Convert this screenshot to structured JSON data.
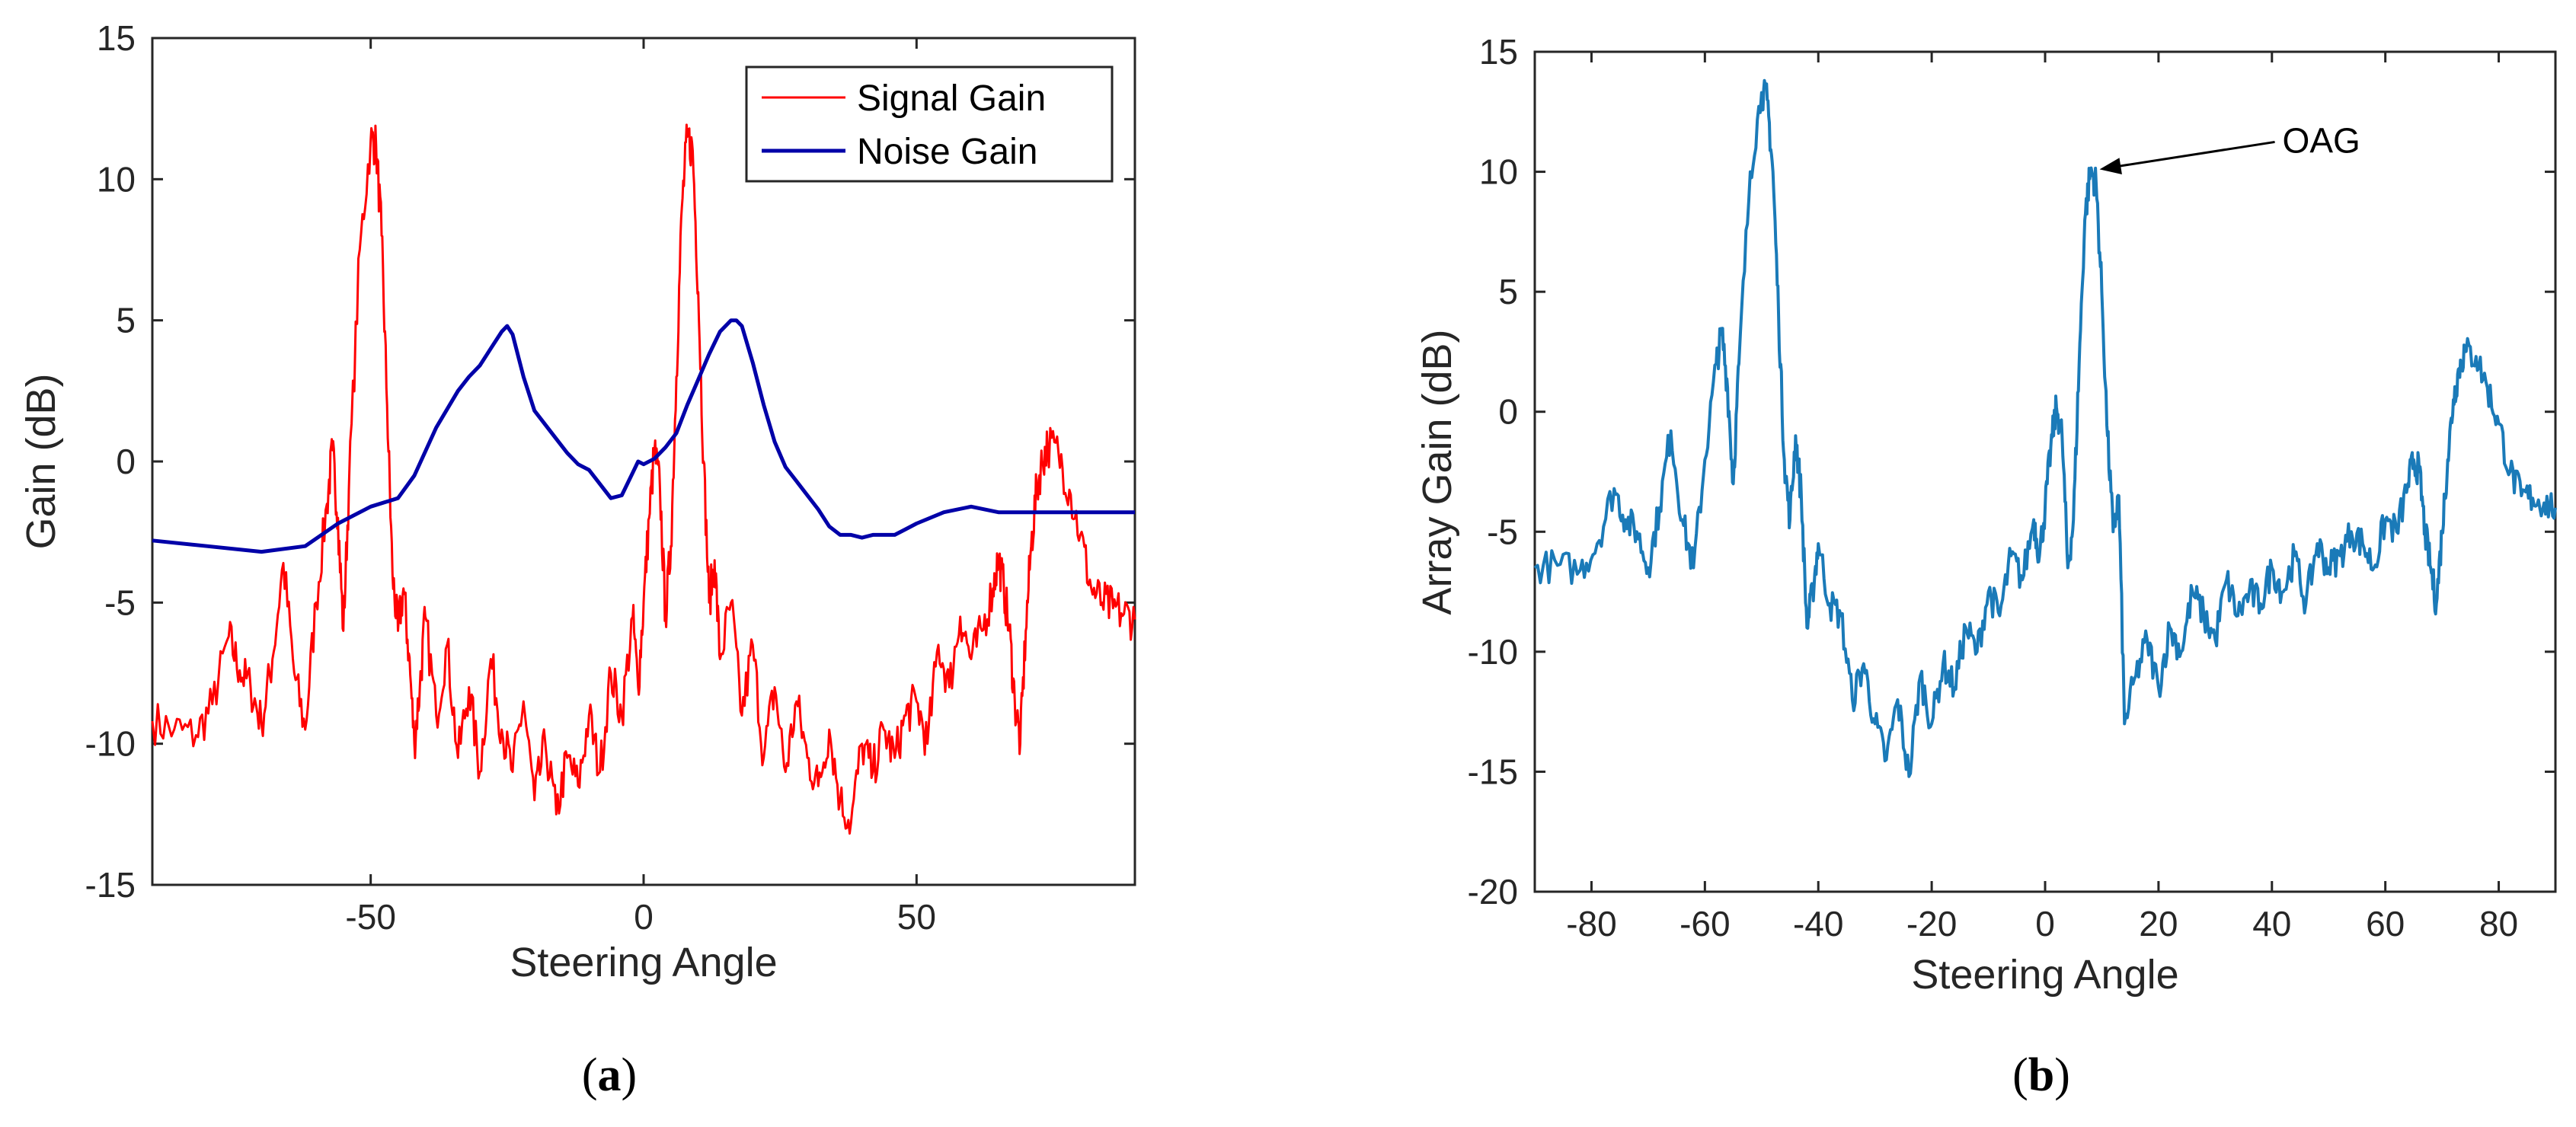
{
  "chart_data": [
    {
      "type": "line",
      "panel_caption": "(a)",
      "caption_letter": "a",
      "title": "",
      "xlabel": "Steering Angle",
      "ylabel": "Gain (dB)",
      "xlim": [
        -90,
        90
      ],
      "ylim": [
        -15,
        15
      ],
      "xticks": [
        -50,
        0,
        50
      ],
      "yticks": [
        -15,
        -10,
        -5,
        0,
        5,
        10,
        15
      ],
      "grid": false,
      "legend_position": "top-right",
      "series": [
        {
          "name": "Signal Gain",
          "color": "#ff0000",
          "x": [
            -90,
            -86,
            -82,
            -79,
            -76,
            -74,
            -72,
            -70,
            -68,
            -66,
            -64,
            -62,
            -60,
            -58,
            -57,
            -56,
            -55,
            -54,
            -52,
            -50,
            -49,
            -48,
            -47,
            -46,
            -45,
            -44,
            -43,
            -42,
            -41,
            -40,
            -38,
            -36,
            -34,
            -32,
            -30,
            -28,
            -26,
            -24,
            -22,
            -20,
            -18,
            -16,
            -14,
            -12,
            -10,
            -8,
            -6,
            -4,
            -2,
            -1,
            0,
            1,
            2,
            3,
            4,
            5,
            6,
            7,
            8,
            9,
            10,
            11,
            12,
            13,
            14,
            16,
            18,
            20,
            22,
            24,
            26,
            28,
            30,
            32,
            34,
            36,
            38,
            40,
            42,
            44,
            46,
            48,
            50,
            52,
            54,
            56,
            58,
            60,
            62,
            64,
            65,
            66,
            67,
            68,
            69,
            70,
            71,
            72,
            73,
            74,
            76,
            78,
            80,
            82,
            84,
            86,
            88,
            90
          ],
          "values": [
            -9.2,
            -9.5,
            -9.7,
            -8.6,
            -6.2,
            -7.4,
            -8.0,
            -9.3,
            -7.0,
            -3.6,
            -7.5,
            -9.5,
            -5.0,
            -1.5,
            0.4,
            -2.0,
            -6.0,
            -1.0,
            7.5,
            11.4,
            11.2,
            8.0,
            2.0,
            -4.0,
            -6.0,
            -4.5,
            -6.8,
            -10.0,
            -8.0,
            -5.5,
            -9.0,
            -6.5,
            -10.5,
            -8.0,
            -11.0,
            -7.0,
            -9.5,
            -11.0,
            -8.5,
            -12.0,
            -10.0,
            -12.5,
            -10.5,
            -11.5,
            -9.0,
            -11.0,
            -7.5,
            -9.0,
            -5.5,
            -8.0,
            -5.0,
            -2.0,
            0.4,
            -1.0,
            -5.5,
            -3.0,
            3.0,
            9.0,
            11.5,
            11.0,
            6.0,
            0.0,
            -5.0,
            -3.5,
            -7.0,
            -5.0,
            -9.0,
            -6.5,
            -10.5,
            -8.0,
            -11.0,
            -8.5,
            -10.5,
            -11.5,
            -9.5,
            -12.0,
            -12.8,
            -10.0,
            -11.0,
            -9.5,
            -10.5,
            -9.0,
            -8.5,
            -10.0,
            -6.5,
            -8.0,
            -5.5,
            -7.0,
            -6.0,
            -4.5,
            -3.4,
            -4.5,
            -6.0,
            -8.5,
            -10.0,
            -6.0,
            -3.0,
            -1.0,
            0.0,
            0.6,
            0.3,
            -1.0,
            -2.6,
            -4.5,
            -5.0,
            -5.2,
            -5.4,
            -5.6
          ]
        },
        {
          "name": "Noise Gain",
          "color": "#0000a8",
          "x": [
            -90,
            -80,
            -70,
            -62,
            -56,
            -50,
            -45,
            -42,
            -38,
            -34,
            -32,
            -30,
            -28,
            -26,
            -25,
            -24,
            -22,
            -20,
            -18,
            -16,
            -14,
            -12,
            -10,
            -8,
            -6,
            -4,
            -2,
            -1,
            0,
            2,
            4,
            6,
            8,
            10,
            12,
            14,
            16,
            17,
            18,
            20,
            22,
            24,
            26,
            28,
            30,
            32,
            34,
            36,
            38,
            40,
            42,
            44,
            46,
            48,
            50,
            55,
            60,
            65,
            70,
            75,
            80,
            85,
            90
          ],
          "values": [
            -2.8,
            -3.0,
            -3.2,
            -3.0,
            -2.2,
            -1.6,
            -1.3,
            -0.5,
            1.2,
            2.5,
            3.0,
            3.4,
            4.0,
            4.6,
            4.8,
            4.5,
            3.0,
            1.8,
            1.3,
            0.8,
            0.3,
            -0.1,
            -0.3,
            -0.8,
            -1.3,
            -1.2,
            -0.4,
            0.0,
            -0.1,
            0.1,
            0.5,
            1.0,
            2.0,
            2.9,
            3.8,
            4.6,
            5.0,
            5.0,
            4.8,
            3.5,
            2.0,
            0.7,
            -0.2,
            -0.7,
            -1.2,
            -1.7,
            -2.3,
            -2.6,
            -2.6,
            -2.7,
            -2.6,
            -2.6,
            -2.6,
            -2.4,
            -2.2,
            -1.8,
            -1.6,
            -1.8,
            -1.8,
            -1.8,
            -1.8,
            -1.8,
            -1.8
          ]
        }
      ]
    },
    {
      "type": "line",
      "panel_caption": "(b)",
      "caption_letter": "b",
      "title": "",
      "xlabel": "Steering Angle",
      "ylabel": "Array Gain (dB)",
      "xlim": [
        -90,
        90
      ],
      "ylim": [
        -20,
        15
      ],
      "xticks": [
        -80,
        -60,
        -40,
        -20,
        0,
        20,
        40,
        60,
        80
      ],
      "yticks": [
        -20,
        -15,
        -10,
        -5,
        0,
        5,
        10,
        15
      ],
      "grid": false,
      "annotation": {
        "text": "OAG",
        "x": 8,
        "y": 10.1
      },
      "series": [
        {
          "name": "Array Gain",
          "color": "#1a7ab8",
          "x": [
            -90,
            -86,
            -82,
            -79,
            -76,
            -74,
            -72,
            -70,
            -68,
            -66,
            -64,
            -62,
            -60,
            -58,
            -57,
            -56,
            -55,
            -54,
            -52,
            -50,
            -49,
            -48,
            -47,
            -46,
            -45,
            -44,
            -43,
            -42,
            -41,
            -40,
            -38,
            -36,
            -34,
            -32,
            -30,
            -28,
            -26,
            -24,
            -22,
            -20,
            -18,
            -16,
            -14,
            -12,
            -10,
            -8,
            -6,
            -4,
            -2,
            -1,
            0,
            1,
            2,
            3,
            4,
            5,
            6,
            7,
            8,
            9,
            10,
            11,
            12,
            13,
            14,
            16,
            18,
            20,
            22,
            24,
            26,
            28,
            30,
            32,
            34,
            36,
            38,
            40,
            42,
            44,
            46,
            48,
            50,
            52,
            54,
            56,
            58,
            60,
            62,
            64,
            65,
            66,
            67,
            68,
            69,
            70,
            71,
            72,
            73,
            74,
            76,
            78,
            80,
            82,
            84,
            86,
            88,
            90
          ],
          "values": [
            -6.5,
            -6.4,
            -6.6,
            -5.5,
            -3.2,
            -4.5,
            -5.0,
            -6.5,
            -4.0,
            -0.8,
            -4.5,
            -6.5,
            -2.0,
            2.0,
            3.3,
            1.0,
            -3.0,
            2.0,
            10.0,
            13.3,
            13.0,
            10.0,
            4.0,
            -2.0,
            -4.5,
            -1.0,
            -3.5,
            -9.0,
            -7.5,
            -5.5,
            -8.0,
            -8.5,
            -12.0,
            -10.5,
            -13.0,
            -14.5,
            -12.0,
            -15.2,
            -11.0,
            -13.0,
            -10.5,
            -11.5,
            -9.0,
            -10.0,
            -7.5,
            -8.5,
            -6.0,
            -7.0,
            -4.5,
            -6.0,
            -4.0,
            -1.5,
            0.2,
            -1.0,
            -6.5,
            -4.5,
            2.0,
            8.0,
            10.1,
            9.5,
            5.0,
            -1.0,
            -5.0,
            -3.5,
            -13.0,
            -11.0,
            -9.5,
            -11.5,
            -9.0,
            -10.0,
            -7.5,
            -8.5,
            -9.5,
            -7.0,
            -8.5,
            -7.5,
            -8.0,
            -6.5,
            -7.5,
            -6.0,
            -8.0,
            -5.5,
            -6.5,
            -6.0,
            -5.0,
            -5.5,
            -6.5,
            -4.5,
            -5.0,
            -3.0,
            -2.0,
            -2.5,
            -5.0,
            -6.5,
            -8.0,
            -5.0,
            -2.0,
            0.5,
            1.8,
            2.5,
            2.3,
            1.0,
            -0.5,
            -2.5,
            -3.5,
            -3.6,
            -3.8,
            -4.0
          ]
        }
      ]
    }
  ]
}
